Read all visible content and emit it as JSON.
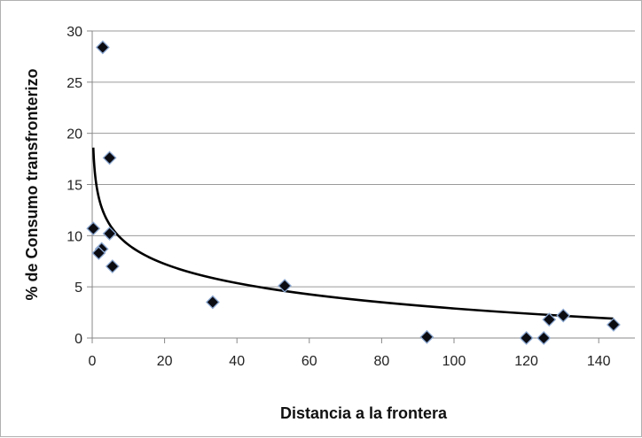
{
  "chart_data": {
    "type": "scatter",
    "title": "",
    "xlabel": "Distancia a la frontera",
    "ylabel": "% de Consumo transfronterizo",
    "xlim": [
      0,
      150
    ],
    "ylim": [
      0,
      30
    ],
    "x_ticks": [
      0,
      20,
      40,
      60,
      80,
      100,
      120,
      140
    ],
    "y_ticks": [
      0,
      5,
      10,
      15,
      20,
      25,
      30
    ],
    "grid": "horizontal",
    "legend": "none",
    "marker": "diamond",
    "series": [
      {
        "x": [
          2.9,
          4.8,
          0.3,
          4.8,
          2.6,
          1.8,
          5.6,
          33.3,
          53.2,
          92.5,
          120.0,
          124.8,
          126.3,
          130.2,
          144.1
        ],
        "y": [
          28.4,
          17.6,
          10.7,
          10.2,
          8.7,
          8.3,
          7.0,
          3.5,
          5.1,
          0.1,
          0.0,
          0.0,
          1.8,
          2.2,
          1.3
        ]
      }
    ],
    "trendline": {
      "type": "logarithmic",
      "x": [
        0.3,
        144
      ],
      "y": [
        18.6,
        1.9
      ]
    }
  }
}
